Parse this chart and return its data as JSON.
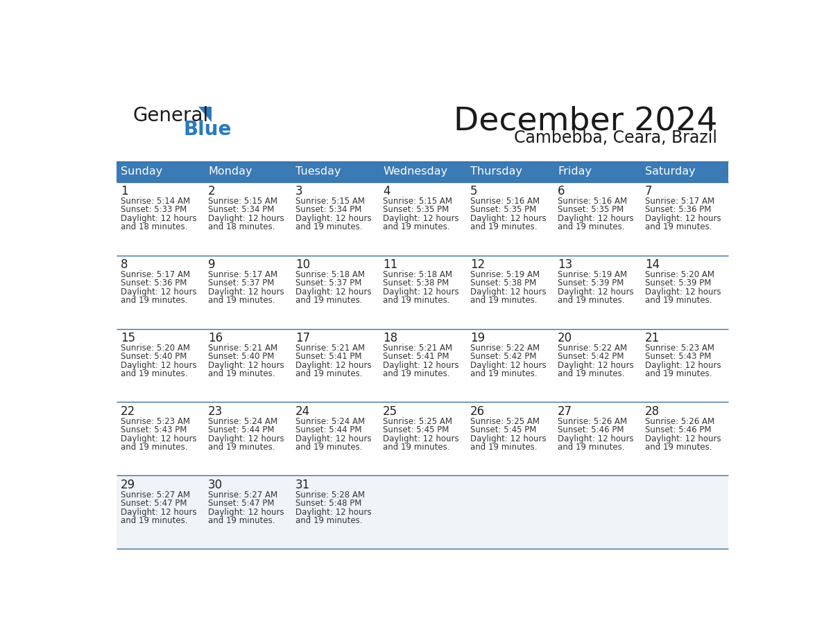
{
  "title": "December 2024",
  "subtitle": "Cambebba, Ceara, Brazil",
  "header_bg_color": "#3a7ab5",
  "header_text_color": "#ffffff",
  "row_bg_white": "#ffffff",
  "row_bg_gray": "#f0f4f8",
  "border_color": "#3a6fa0",
  "text_color": "#333333",
  "day_num_color": "#222222",
  "days_of_week": [
    "Sunday",
    "Monday",
    "Tuesday",
    "Wednesday",
    "Thursday",
    "Friday",
    "Saturday"
  ],
  "weeks": [
    [
      {
        "day": 1,
        "sunrise": "5:14 AM",
        "sunset": "5:33 PM",
        "daylight": "12 hours and 18 minutes."
      },
      {
        "day": 2,
        "sunrise": "5:15 AM",
        "sunset": "5:34 PM",
        "daylight": "12 hours and 18 minutes."
      },
      {
        "day": 3,
        "sunrise": "5:15 AM",
        "sunset": "5:34 PM",
        "daylight": "12 hours and 19 minutes."
      },
      {
        "day": 4,
        "sunrise": "5:15 AM",
        "sunset": "5:35 PM",
        "daylight": "12 hours and 19 minutes."
      },
      {
        "day": 5,
        "sunrise": "5:16 AM",
        "sunset": "5:35 PM",
        "daylight": "12 hours and 19 minutes."
      },
      {
        "day": 6,
        "sunrise": "5:16 AM",
        "sunset": "5:35 PM",
        "daylight": "12 hours and 19 minutes."
      },
      {
        "day": 7,
        "sunrise": "5:17 AM",
        "sunset": "5:36 PM",
        "daylight": "12 hours and 19 minutes."
      }
    ],
    [
      {
        "day": 8,
        "sunrise": "5:17 AM",
        "sunset": "5:36 PM",
        "daylight": "12 hours and 19 minutes."
      },
      {
        "day": 9,
        "sunrise": "5:17 AM",
        "sunset": "5:37 PM",
        "daylight": "12 hours and 19 minutes."
      },
      {
        "day": 10,
        "sunrise": "5:18 AM",
        "sunset": "5:37 PM",
        "daylight": "12 hours and 19 minutes."
      },
      {
        "day": 11,
        "sunrise": "5:18 AM",
        "sunset": "5:38 PM",
        "daylight": "12 hours and 19 minutes."
      },
      {
        "day": 12,
        "sunrise": "5:19 AM",
        "sunset": "5:38 PM",
        "daylight": "12 hours and 19 minutes."
      },
      {
        "day": 13,
        "sunrise": "5:19 AM",
        "sunset": "5:39 PM",
        "daylight": "12 hours and 19 minutes."
      },
      {
        "day": 14,
        "sunrise": "5:20 AM",
        "sunset": "5:39 PM",
        "daylight": "12 hours and 19 minutes."
      }
    ],
    [
      {
        "day": 15,
        "sunrise": "5:20 AM",
        "sunset": "5:40 PM",
        "daylight": "12 hours and 19 minutes."
      },
      {
        "day": 16,
        "sunrise": "5:21 AM",
        "sunset": "5:40 PM",
        "daylight": "12 hours and 19 minutes."
      },
      {
        "day": 17,
        "sunrise": "5:21 AM",
        "sunset": "5:41 PM",
        "daylight": "12 hours and 19 minutes."
      },
      {
        "day": 18,
        "sunrise": "5:21 AM",
        "sunset": "5:41 PM",
        "daylight": "12 hours and 19 minutes."
      },
      {
        "day": 19,
        "sunrise": "5:22 AM",
        "sunset": "5:42 PM",
        "daylight": "12 hours and 19 minutes."
      },
      {
        "day": 20,
        "sunrise": "5:22 AM",
        "sunset": "5:42 PM",
        "daylight": "12 hours and 19 minutes."
      },
      {
        "day": 21,
        "sunrise": "5:23 AM",
        "sunset": "5:43 PM",
        "daylight": "12 hours and 19 minutes."
      }
    ],
    [
      {
        "day": 22,
        "sunrise": "5:23 AM",
        "sunset": "5:43 PM",
        "daylight": "12 hours and 19 minutes."
      },
      {
        "day": 23,
        "sunrise": "5:24 AM",
        "sunset": "5:44 PM",
        "daylight": "12 hours and 19 minutes."
      },
      {
        "day": 24,
        "sunrise": "5:24 AM",
        "sunset": "5:44 PM",
        "daylight": "12 hours and 19 minutes."
      },
      {
        "day": 25,
        "sunrise": "5:25 AM",
        "sunset": "5:45 PM",
        "daylight": "12 hours and 19 minutes."
      },
      {
        "day": 26,
        "sunrise": "5:25 AM",
        "sunset": "5:45 PM",
        "daylight": "12 hours and 19 minutes."
      },
      {
        "day": 27,
        "sunrise": "5:26 AM",
        "sunset": "5:46 PM",
        "daylight": "12 hours and 19 minutes."
      },
      {
        "day": 28,
        "sunrise": "5:26 AM",
        "sunset": "5:46 PM",
        "daylight": "12 hours and 19 minutes."
      }
    ],
    [
      {
        "day": 29,
        "sunrise": "5:27 AM",
        "sunset": "5:47 PM",
        "daylight": "12 hours and 19 minutes."
      },
      {
        "day": 30,
        "sunrise": "5:27 AM",
        "sunset": "5:47 PM",
        "daylight": "12 hours and 19 minutes."
      },
      {
        "day": 31,
        "sunrise": "5:28 AM",
        "sunset": "5:48 PM",
        "daylight": "12 hours and 19 minutes."
      },
      null,
      null,
      null,
      null
    ]
  ],
  "logo_general_color": "#1a1a1a",
  "logo_blue_color": "#2a7abf",
  "logo_triangle_color": "#2a7abf",
  "title_color": "#1a1a1a",
  "subtitle_color": "#1a1a1a"
}
